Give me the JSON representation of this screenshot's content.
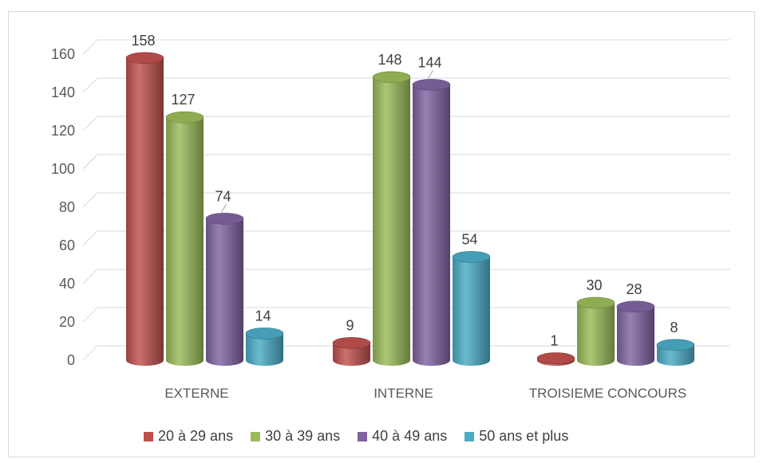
{
  "chart_data": {
    "type": "bar",
    "categories": [
      "EXTERNE",
      "INTERNE",
      "TROISIEME CONCOURS"
    ],
    "series": [
      {
        "name": "20 à 29 ans",
        "values": [
          158,
          9,
          1
        ],
        "color": "#c0504d"
      },
      {
        "name": "30 à 39 ans",
        "values": [
          127,
          148,
          30
        ],
        "color": "#9bbb59"
      },
      {
        "name": "40 à 49 ans",
        "values": [
          74,
          144,
          28
        ],
        "color": "#8064a2"
      },
      {
        "name": "50 ans et plus",
        "values": [
          14,
          54,
          8
        ],
        "color": "#4bacc6"
      }
    ],
    "yticks": [
      "0",
      "20",
      "40",
      "60",
      "80",
      "100",
      "120",
      "140",
      "160"
    ],
    "ylim": [
      0,
      180
    ],
    "grid": true,
    "legend_position": "bottom",
    "title": "",
    "xlabel": "",
    "ylabel": ""
  }
}
